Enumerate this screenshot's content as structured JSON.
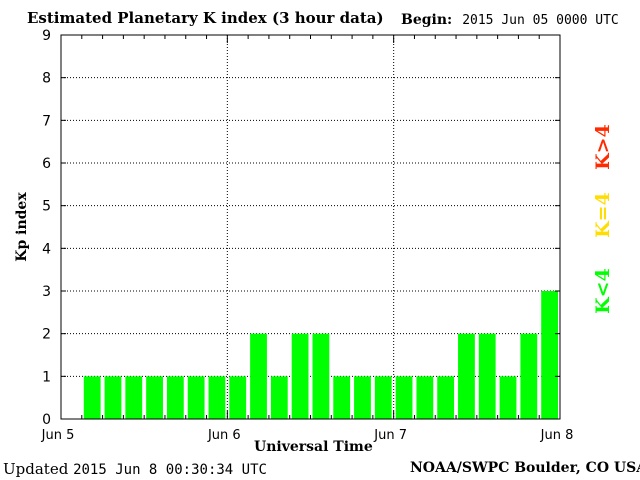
{
  "header": {
    "title": "Estimated Planetary K index (3 hour data)",
    "begin_label": "Begin:",
    "begin_value": "2015 Jun 05 0000 UTC"
  },
  "footer": {
    "updated_label": "Updated",
    "updated_value": "2015 Jun  8 00:30:34 UTC",
    "credit": "NOAA/SWPC Boulder, CO USA"
  },
  "legend": [
    {
      "label": "K>4",
      "color": "#ff2a00"
    },
    {
      "label": "K=4",
      "color": "#ffdd00"
    },
    {
      "label": "K<4",
      "color": "#00ff00"
    }
  ],
  "chart_data": {
    "type": "bar",
    "title": "Estimated Planetary K index (3 hour data)",
    "xlabel": "Universal Time",
    "ylabel": "Kp index",
    "ylim": [
      0,
      9
    ],
    "yticks": [
      "0",
      "1",
      "2",
      "3",
      "4",
      "5",
      "6",
      "7",
      "8",
      "9"
    ],
    "xticks": [
      "Jun 5",
      "Jun 6",
      "Jun 7",
      "Jun 8"
    ],
    "grid": true,
    "bar_color": "#00ff00",
    "values": [
      1,
      1,
      1,
      1,
      1,
      1,
      1,
      1,
      2,
      1,
      2,
      2,
      1,
      1,
      1,
      1,
      1,
      1,
      2,
      2,
      1,
      2,
      3
    ]
  }
}
